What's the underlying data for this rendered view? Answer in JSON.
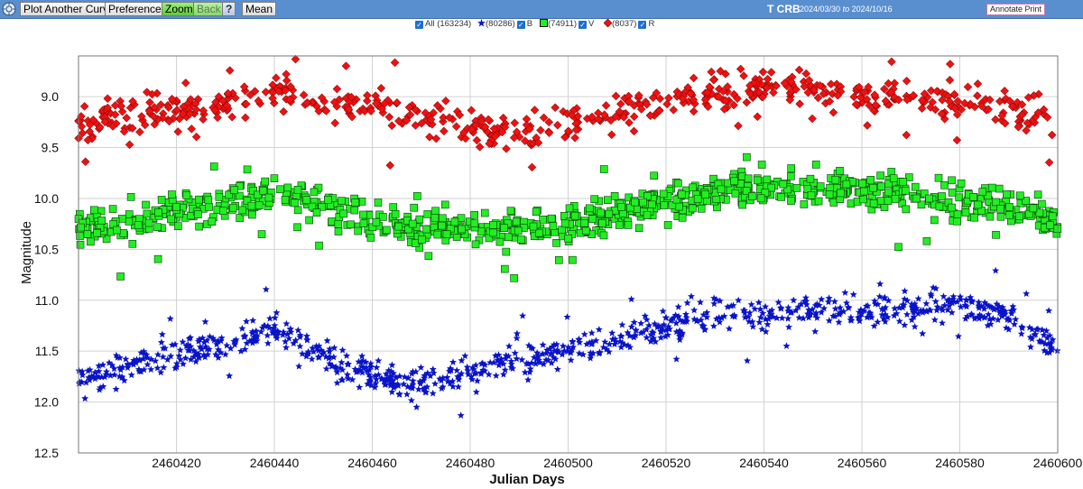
{
  "toolbar": {
    "plot_another": "Plot Another Curve",
    "preferences": "Preferences",
    "zoom": "Zoom",
    "back": "Back",
    "help": "?",
    "mean": "Mean",
    "star": "T CRB",
    "date_from": "2024/03/30",
    "date_to_word": "to",
    "date_to": "2024/10/16",
    "annotate": "Annotate Print"
  },
  "legend": {
    "all": "All (163234)",
    "b_count": "(80286)",
    "b_label": "B",
    "v_count": "(74911)",
    "v_label": "V",
    "r_count": "(8037)",
    "r_label": "R"
  },
  "colors": {
    "toolbar": "#5a8fcf",
    "B": "#0a14c8",
    "V": "#22ee22",
    "R": "#ee1111"
  },
  "chart_data": {
    "type": "scatter",
    "xlabel": "Julian Days",
    "ylabel": "Magnitude",
    "xlim": [
      2460400,
      2460600
    ],
    "ylim": [
      12.5,
      8.6
    ],
    "y_inverted": true,
    "grid": true,
    "xticks": [
      2460420,
      2460440,
      2460460,
      2460480,
      2460500,
      2460520,
      2460540,
      2460560,
      2460580,
      2460600
    ],
    "yticks": [
      9.0,
      9.5,
      10.0,
      10.5,
      11.0,
      11.5,
      12.0,
      12.5
    ],
    "series": [
      {
        "name": "R",
        "marker": "diamond",
        "color": "#ee1111",
        "x": [
          2460400,
          2460410,
          2460420,
          2460430,
          2460440,
          2460450,
          2460460,
          2460470,
          2460480,
          2460490,
          2460500,
          2460510,
          2460520,
          2460530,
          2460540,
          2460550,
          2460560,
          2460570,
          2460580,
          2460590,
          2460600
        ],
        "y": [
          9.25,
          9.2,
          9.15,
          9.05,
          8.95,
          9.05,
          9.1,
          9.2,
          9.3,
          9.35,
          9.25,
          9.15,
          9.05,
          8.95,
          8.9,
          8.95,
          9.0,
          9.0,
          9.05,
          9.1,
          9.25
        ]
      },
      {
        "name": "V",
        "marker": "square",
        "color": "#22ee22",
        "x": [
          2460400,
          2460410,
          2460420,
          2460430,
          2460440,
          2460450,
          2460460,
          2460470,
          2460480,
          2460490,
          2460500,
          2460510,
          2460520,
          2460530,
          2460540,
          2460550,
          2460560,
          2460570,
          2460580,
          2460590,
          2460600
        ],
        "y": [
          10.3,
          10.25,
          10.15,
          10.05,
          9.95,
          10.05,
          10.2,
          10.3,
          10.3,
          10.3,
          10.25,
          10.15,
          10.05,
          9.95,
          9.9,
          9.9,
          9.95,
          9.95,
          10.0,
          10.1,
          10.25
        ]
      },
      {
        "name": "B",
        "marker": "star",
        "color": "#0a14c8",
        "x": [
          2460400,
          2460410,
          2460420,
          2460430,
          2460440,
          2460450,
          2460460,
          2460470,
          2460480,
          2460490,
          2460500,
          2460510,
          2460520,
          2460530,
          2460540,
          2460550,
          2460560,
          2460570,
          2460580,
          2460590,
          2460600
        ],
        "y": [
          11.8,
          11.65,
          11.55,
          11.4,
          11.3,
          11.55,
          11.75,
          11.85,
          11.7,
          11.6,
          11.5,
          11.4,
          11.25,
          11.15,
          11.15,
          11.1,
          11.1,
          11.1,
          11.05,
          11.15,
          11.5
        ]
      }
    ]
  }
}
